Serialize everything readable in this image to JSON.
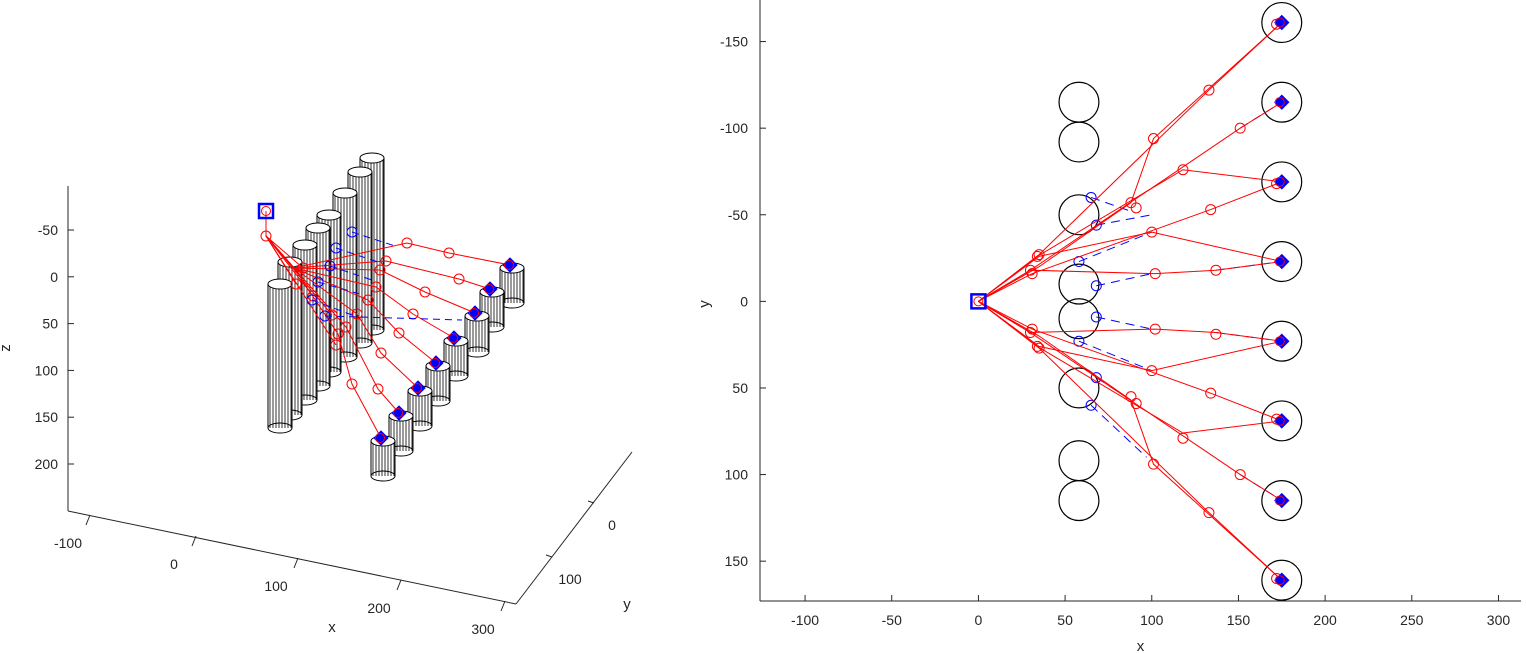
{
  "chart_data": [
    {
      "type": "3d-line",
      "xlabel": "x",
      "ylabel": "y",
      "zlabel": "z",
      "x_ticks": [
        "-100",
        "0",
        "100",
        "200",
        "300"
      ],
      "y_ticks": [
        "0",
        "100"
      ],
      "z_ticks": [
        "-50",
        "0",
        "50",
        "100",
        "150",
        "200"
      ],
      "xlim": [
        -130,
        310
      ],
      "ylim": [
        -110,
        230
      ],
      "zlim": [
        -80,
        240
      ],
      "z_reversed": true,
      "cylinders": {
        "row1": {
          "x": 58,
          "y": [
            -115,
            -92,
            -50,
            -10,
            10,
            50,
            92,
            115
          ],
          "z_top": 0,
          "z_bottom": 150
        },
        "row2": {
          "x": 175,
          "y": [
            -161,
            -115,
            -69,
            -23,
            23,
            69,
            115,
            161
          ],
          "z_top": 0,
          "z_bottom": 30
        }
      },
      "source_point": {
        "x": 0,
        "y": 0,
        "z": -70
      },
      "targets": [
        {
          "x": 175,
          "y": -161,
          "z": 0
        },
        {
          "x": 175,
          "y": -115,
          "z": 0
        },
        {
          "x": 175,
          "y": -69,
          "z": 0
        },
        {
          "x": 175,
          "y": -23,
          "z": 0
        },
        {
          "x": 175,
          "y": 23,
          "z": 0
        },
        {
          "x": 175,
          "y": 69,
          "z": 0
        },
        {
          "x": 175,
          "y": 115,
          "z": 0
        },
        {
          "x": 175,
          "y": 161,
          "z": 0
        }
      ],
      "red_paths": [
        [
          [
            0,
            0,
            -70
          ],
          [
            0,
            0,
            -40
          ],
          [
            35,
            -27,
            0
          ],
          [
            90,
            -122,
            0
          ],
          [
            175,
            -161,
            0
          ]
        ],
        [
          [
            0,
            0,
            -40
          ],
          [
            32,
            -20,
            0
          ],
          [
            100,
            -90,
            0
          ],
          [
            175,
            -115,
            0
          ]
        ],
        [
          [
            0,
            0,
            -40
          ],
          [
            35,
            -25,
            0
          ],
          [
            118,
            -76,
            0
          ],
          [
            175,
            -69,
            0
          ]
        ],
        [
          [
            0,
            0,
            -40
          ],
          [
            30,
            -20,
            0
          ],
          [
            102,
            -40,
            0
          ],
          [
            175,
            -23,
            0
          ]
        ],
        [
          [
            0,
            0,
            -40
          ],
          [
            30,
            18,
            0
          ],
          [
            102,
            40,
            0
          ],
          [
            175,
            23,
            0
          ]
        ],
        [
          [
            0,
            0,
            -40
          ],
          [
            35,
            25,
            0
          ],
          [
            118,
            76,
            0
          ],
          [
            175,
            69,
            0
          ]
        ],
        [
          [
            0,
            0,
            -40
          ],
          [
            32,
            20,
            0
          ],
          [
            100,
            92,
            0
          ],
          [
            175,
            115,
            0
          ]
        ],
        [
          [
            0,
            0,
            -40
          ],
          [
            35,
            27,
            0
          ],
          [
            90,
            122,
            0
          ],
          [
            175,
            161,
            0
          ]
        ]
      ],
      "blue_paths": [
        [
          [
            65,
            -60,
            0
          ],
          [
            75,
            -80,
            0
          ],
          [
            100,
            -90,
            0
          ]
        ],
        [
          [
            68,
            -45,
            0
          ],
          [
            85,
            -55,
            0
          ]
        ],
        [
          [
            58,
            -23,
            0
          ],
          [
            90,
            -40,
            0
          ]
        ],
        [
          [
            68,
            -10,
            0
          ],
          [
            100,
            -18,
            0
          ]
        ],
        [
          [
            68,
            10,
            0
          ],
          [
            100,
            18,
            0
          ]
        ],
        [
          [
            58,
            23,
            0
          ],
          [
            90,
            40,
            0
          ]
        ],
        [
          [
            68,
            45,
            0
          ],
          [
            85,
            55,
            0
          ]
        ],
        [
          [
            65,
            60,
            0
          ],
          [
            75,
            80,
            0
          ],
          [
            100,
            90,
            0
          ]
        ]
      ]
    },
    {
      "type": "line",
      "xlabel": "x",
      "ylabel": "y",
      "x_ticks": [
        -100,
        -50,
        0,
        50,
        100,
        150,
        200,
        250,
        300
      ],
      "y_ticks": [
        -150,
        -100,
        -50,
        0,
        50,
        100,
        150
      ],
      "xlim": [
        -126,
        313
      ],
      "ylim": [
        -174,
        173
      ],
      "y_reversed": true,
      "source": {
        "x": 0,
        "y": 0
      },
      "obstacles_row1": {
        "x": 58,
        "r": 11.5,
        "y": [
          -115,
          -92,
          -50,
          -10,
          10,
          50,
          92,
          115
        ]
      },
      "obstacles_row2": {
        "x": 175,
        "r": 11.5,
        "y": [
          -161,
          -115,
          -69,
          -23,
          23,
          69,
          115,
          161
        ]
      },
      "red_series": [
        {
          "x": [
            0,
            35,
            133,
            175
          ],
          "y": [
            0,
            -27,
            -122,
            -161
          ]
        },
        {
          "x": [
            0,
            30,
            151,
            175
          ],
          "y": [
            0,
            -18,
            -100,
            -115
          ]
        },
        {
          "x": [
            0,
            34,
            118,
            175
          ],
          "y": [
            0,
            -26,
            -76,
            -69
          ]
        },
        {
          "x": [
            0,
            31,
            134,
            175
          ],
          "y": [
            0,
            -16,
            -53,
            -69
          ]
        },
        {
          "x": [
            0,
            35,
            100,
            175
          ],
          "y": [
            0,
            -26,
            -40,
            -23
          ]
        },
        {
          "x": [
            0,
            30,
            102,
            137,
            175
          ],
          "y": [
            0,
            -18,
            -16,
            -18,
            -23
          ]
        },
        {
          "x": [
            0,
            30,
            102,
            137,
            175
          ],
          "y": [
            0,
            18,
            16,
            18,
            23
          ]
        },
        {
          "x": [
            0,
            35,
            100,
            175
          ],
          "y": [
            0,
            26,
            40,
            23
          ]
        },
        {
          "x": [
            0,
            31,
            134,
            175
          ],
          "y": [
            0,
            16,
            53,
            69
          ]
        },
        {
          "x": [
            0,
            34,
            118,
            175
          ],
          "y": [
            0,
            26,
            76,
            69
          ]
        },
        {
          "x": [
            0,
            30,
            151,
            175
          ],
          "y": [
            0,
            18,
            100,
            115
          ]
        },
        {
          "x": [
            0,
            35,
            133,
            175
          ],
          "y": [
            0,
            27,
            122,
            161
          ]
        },
        {
          "x": [
            0,
            35,
            88,
            101,
            175
          ],
          "y": [
            0,
            -20,
            -57,
            -94,
            -161
          ]
        },
        {
          "x": [
            0,
            35,
            88,
            101,
            175
          ],
          "y": [
            0,
            20,
            57,
            94,
            161
          ]
        }
      ],
      "red_markers": [
        {
          "x": 133,
          "y": -122
        },
        {
          "x": 151,
          "y": -100
        },
        {
          "x": 118,
          "y": -76
        },
        {
          "x": 101,
          "y": -94
        },
        {
          "x": 88,
          "y": -57
        },
        {
          "x": 91,
          "y": -54
        },
        {
          "x": 134,
          "y": -53
        },
        {
          "x": 100,
          "y": -40
        },
        {
          "x": 102,
          "y": -16
        },
        {
          "x": 137,
          "y": -18
        },
        {
          "x": 35,
          "y": -27
        },
        {
          "x": 34,
          "y": -26
        },
        {
          "x": 30,
          "y": -18
        },
        {
          "x": 31,
          "y": -16
        },
        {
          "x": 133,
          "y": 122
        },
        {
          "x": 151,
          "y": 100
        },
        {
          "x": 118,
          "y": 79
        },
        {
          "x": 101,
          "y": 94
        },
        {
          "x": 88,
          "y": 55
        },
        {
          "x": 91,
          "y": 59
        },
        {
          "x": 134,
          "y": 53
        },
        {
          "x": 100,
          "y": 40
        },
        {
          "x": 102,
          "y": 16
        },
        {
          "x": 137,
          "y": 19
        },
        {
          "x": 35,
          "y": 27
        },
        {
          "x": 34,
          "y": 26
        },
        {
          "x": 30,
          "y": 18
        },
        {
          "x": 31,
          "y": 16
        },
        {
          "x": 172,
          "y": -160
        },
        {
          "x": 172,
          "y": 160
        },
        {
          "x": 172,
          "y": 68
        },
        {
          "x": 172,
          "y": -68
        }
      ],
      "blue_series": [
        {
          "x": [
            65,
            88
          ],
          "y": [
            -60,
            -52
          ]
        },
        {
          "x": [
            68,
            100
          ],
          "y": [
            -44,
            -50
          ]
        },
        {
          "x": [
            58,
            100
          ],
          "y": [
            -23,
            -40
          ]
        },
        {
          "x": [
            68,
            100
          ],
          "y": [
            -9,
            -16
          ]
        },
        {
          "x": [
            68,
            100
          ],
          "y": [
            9,
            16
          ]
        },
        {
          "x": [
            58,
            100
          ],
          "y": [
            23,
            40
          ]
        },
        {
          "x": [
            68,
            88
          ],
          "y": [
            44,
            57
          ]
        },
        {
          "x": [
            65,
            97
          ],
          "y": [
            60,
            90
          ]
        },
        {
          "x": [
            151,
            175
          ],
          "y": [
            -100,
            -115
          ]
        },
        {
          "x": [
            137,
            175
          ],
          "y": [
            -18,
            -23
          ]
        },
        {
          "x": [
            137,
            175
          ],
          "y": [
            18,
            23
          ]
        },
        {
          "x": [
            151,
            175
          ],
          "y": [
            100,
            115
          ]
        }
      ],
      "blue_markers": [
        {
          "x": 65,
          "y": -60
        },
        {
          "x": 68,
          "y": -44
        },
        {
          "x": 58,
          "y": -23
        },
        {
          "x": 68,
          "y": -9
        },
        {
          "x": 68,
          "y": 9
        },
        {
          "x": 58,
          "y": 23
        },
        {
          "x": 68,
          "y": 44
        },
        {
          "x": 65,
          "y": 60
        }
      ],
      "targets": [
        {
          "x": 175,
          "y": -161
        },
        {
          "x": 175,
          "y": -115
        },
        {
          "x": 175,
          "y": -69
        },
        {
          "x": 175,
          "y": -23
        },
        {
          "x": 175,
          "y": 23
        },
        {
          "x": 175,
          "y": 69
        },
        {
          "x": 175,
          "y": 115
        },
        {
          "x": 175,
          "y": 161
        }
      ]
    }
  ]
}
